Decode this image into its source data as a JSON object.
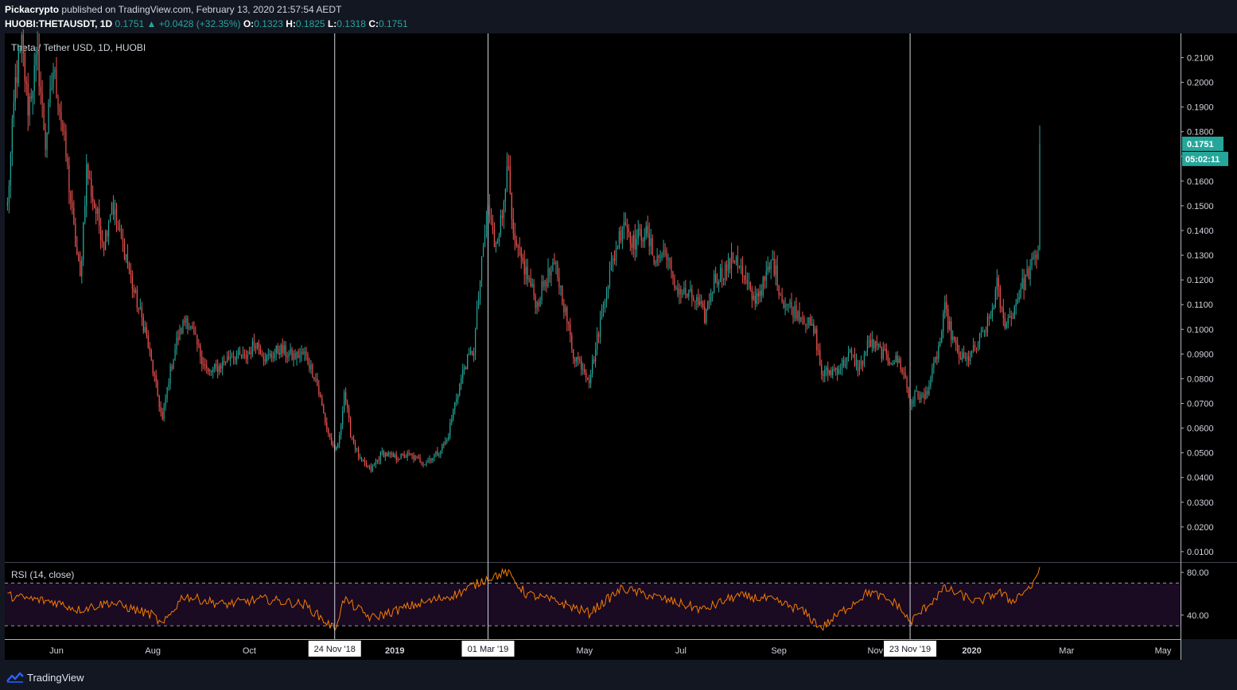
{
  "header": {
    "publisher": "Pickacrypto",
    "published_text": "published on TradingView.com, February 13, 2020 21:57:54 AEDT",
    "symbol": "HUOBI:THETAUSDT, 1D",
    "last": "0.1751",
    "change_arrow": "▲",
    "change": "+0.0428 (+32.35%)",
    "o_label": "O:",
    "o_value": "0.1323",
    "h_label": "H:",
    "h_value": "0.1825",
    "l_label": "L:",
    "l_value": "0.1318",
    "c_label": "C:",
    "c_value": "0.1751"
  },
  "footer": {
    "brand": "TradingView",
    "logo_icon": "tradingview-logo-icon"
  },
  "colors": {
    "background": "#000000",
    "frame": "#131722",
    "up": "#26a69a",
    "down": "#ef5350",
    "rsi_line": "#f57c00",
    "rsi_band": "#1a0a22",
    "text": "#d1d4dc",
    "axis_line": "#b2b5be",
    "price_badge": "#26a69a"
  },
  "chart_data": [
    {
      "type": "candlestick",
      "title": "Theta / Tether USD, 1D, HUOBI",
      "x_tick_labels": [
        "Jun",
        "Aug",
        "Oct",
        "2019",
        "May",
        "Jul",
        "Sep",
        "Nov",
        "2020",
        "Mar",
        "May"
      ],
      "y_ticks": [
        "0.2100",
        "0.2000",
        "0.1900",
        "0.1800",
        "0.1700",
        "0.1600",
        "0.1500",
        "0.1400",
        "0.1300",
        "0.1200",
        "0.1100",
        "0.1000",
        "0.0900",
        "0.0800",
        "0.0700",
        "0.0600",
        "0.0500",
        "0.0400",
        "0.0300",
        "0.0200",
        "0.0100"
      ],
      "ylim": [
        0.0058,
        0.2198
      ],
      "last_price_label": "0.1751",
      "countdown_label": "05:02:11",
      "vertical_markers": [
        {
          "label": "24 Nov '18"
        },
        {
          "label": "01 Mar '19"
        },
        {
          "label": "23 Nov '19"
        }
      ],
      "price_anchors": [
        [
          "2018-05-01",
          0.15
        ],
        [
          "2018-05-06",
          0.2
        ],
        [
          "2018-05-10",
          0.215
        ],
        [
          "2018-05-14",
          0.19
        ],
        [
          "2018-05-20",
          0.21
        ],
        [
          "2018-05-25",
          0.175
        ],
        [
          "2018-05-30",
          0.205
        ],
        [
          "2018-06-03",
          0.19
        ],
        [
          "2018-06-07",
          0.17
        ],
        [
          "2018-06-12",
          0.14
        ],
        [
          "2018-06-16",
          0.12
        ],
        [
          "2018-06-20",
          0.165
        ],
        [
          "2018-06-25",
          0.15
        ],
        [
          "2018-07-01",
          0.135
        ],
        [
          "2018-07-06",
          0.152
        ],
        [
          "2018-07-10",
          0.14
        ],
        [
          "2018-07-15",
          0.13
        ],
        [
          "2018-07-20",
          0.115
        ],
        [
          "2018-07-27",
          0.1
        ],
        [
          "2018-08-02",
          0.08
        ],
        [
          "2018-08-07",
          0.063
        ],
        [
          "2018-08-11",
          0.08
        ],
        [
          "2018-08-16",
          0.095
        ],
        [
          "2018-08-22",
          0.105
        ],
        [
          "2018-08-28",
          0.095
        ],
        [
          "2018-09-05",
          0.082
        ],
        [
          "2018-09-12",
          0.085
        ],
        [
          "2018-09-20",
          0.09
        ],
        [
          "2018-09-28",
          0.088
        ],
        [
          "2018-10-05",
          0.095
        ],
        [
          "2018-10-12",
          0.088
        ],
        [
          "2018-10-20",
          0.092
        ],
        [
          "2018-10-28",
          0.089
        ],
        [
          "2018-11-05",
          0.09
        ],
        [
          "2018-11-12",
          0.08
        ],
        [
          "2018-11-19",
          0.06
        ],
        [
          "2018-11-24",
          0.05
        ],
        [
          "2018-11-27",
          0.056
        ],
        [
          "2018-11-30",
          0.075
        ],
        [
          "2018-12-04",
          0.058
        ],
        [
          "2018-12-10",
          0.047
        ],
        [
          "2018-12-17",
          0.043
        ],
        [
          "2018-12-24",
          0.05
        ],
        [
          "2019-01-01",
          0.048
        ],
        [
          "2019-01-10",
          0.049
        ],
        [
          "2019-01-20",
          0.046
        ],
        [
          "2019-01-28",
          0.05
        ],
        [
          "2019-02-03",
          0.055
        ],
        [
          "2019-02-08",
          0.07
        ],
        [
          "2019-02-14",
          0.085
        ],
        [
          "2019-02-20",
          0.092
        ],
        [
          "2019-02-24",
          0.12
        ],
        [
          "2019-03-01",
          0.15
        ],
        [
          "2019-03-05",
          0.135
        ],
        [
          "2019-03-10",
          0.145
        ],
        [
          "2019-03-13",
          0.17
        ],
        [
          "2019-03-17",
          0.135
        ],
        [
          "2019-03-24",
          0.125
        ],
        [
          "2019-04-01",
          0.11
        ],
        [
          "2019-04-06",
          0.12
        ],
        [
          "2019-04-13",
          0.125
        ],
        [
          "2019-04-18",
          0.11
        ],
        [
          "2019-04-24",
          0.09
        ],
        [
          "2019-04-30",
          0.085
        ],
        [
          "2019-05-04",
          0.08
        ],
        [
          "2019-05-08",
          0.092
        ],
        [
          "2019-05-14",
          0.115
        ],
        [
          "2019-05-20",
          0.13
        ],
        [
          "2019-05-26",
          0.145
        ],
        [
          "2019-06-01",
          0.135
        ],
        [
          "2019-06-08",
          0.14
        ],
        [
          "2019-06-15",
          0.128
        ],
        [
          "2019-06-22",
          0.132
        ],
        [
          "2019-06-26",
          0.118
        ],
        [
          "2019-07-02",
          0.115
        ],
        [
          "2019-07-10",
          0.112
        ],
        [
          "2019-07-16",
          0.105
        ],
        [
          "2019-07-22",
          0.12
        ],
        [
          "2019-07-30",
          0.125
        ],
        [
          "2019-08-05",
          0.13
        ],
        [
          "2019-08-10",
          0.12
        ],
        [
          "2019-08-16",
          0.112
        ],
        [
          "2019-08-22",
          0.118
        ],
        [
          "2019-08-28",
          0.128
        ],
        [
          "2019-09-03",
          0.112
        ],
        [
          "2019-09-10",
          0.108
        ],
        [
          "2019-09-17",
          0.105
        ],
        [
          "2019-09-24",
          0.098
        ],
        [
          "2019-09-28",
          0.082
        ],
        [
          "2019-10-04",
          0.083
        ],
        [
          "2019-10-10",
          0.085
        ],
        [
          "2019-10-16",
          0.09
        ],
        [
          "2019-10-22",
          0.084
        ],
        [
          "2019-10-28",
          0.095
        ],
        [
          "2019-11-03",
          0.092
        ],
        [
          "2019-11-09",
          0.088
        ],
        [
          "2019-11-16",
          0.087
        ],
        [
          "2019-11-20",
          0.08
        ],
        [
          "2019-11-23",
          0.07
        ],
        [
          "2019-11-27",
          0.074
        ],
        [
          "2019-12-02",
          0.072
        ],
        [
          "2019-12-07",
          0.082
        ],
        [
          "2019-12-12",
          0.095
        ],
        [
          "2019-12-15",
          0.108
        ],
        [
          "2019-12-19",
          0.098
        ],
        [
          "2019-12-23",
          0.09
        ],
        [
          "2019-12-28",
          0.087
        ],
        [
          "2020-01-03",
          0.092
        ],
        [
          "2020-01-08",
          0.098
        ],
        [
          "2020-01-13",
          0.105
        ],
        [
          "2020-01-17",
          0.118
        ],
        [
          "2020-01-21",
          0.103
        ],
        [
          "2020-01-26",
          0.105
        ],
        [
          "2020-01-31",
          0.115
        ],
        [
          "2020-02-05",
          0.122
        ],
        [
          "2020-02-10",
          0.128
        ],
        [
          "2020-02-12",
          0.132
        ],
        [
          "2020-02-13",
          0.1751
        ]
      ]
    },
    {
      "type": "line",
      "title": "RSI (14, close)",
      "y_ticks": [
        "80.00",
        "40.00"
      ],
      "band": [
        30,
        70
      ],
      "ylim": [
        17.5,
        89
      ],
      "rsi_anchors": [
        [
          "2018-05-01",
          58
        ],
        [
          "2018-06-01",
          52
        ],
        [
          "2018-06-15",
          45
        ],
        [
          "2018-07-05",
          52
        ],
        [
          "2018-08-01",
          40
        ],
        [
          "2018-08-07",
          30
        ],
        [
          "2018-08-20",
          58
        ],
        [
          "2018-09-15",
          50
        ],
        [
          "2018-10-10",
          55
        ],
        [
          "2018-11-05",
          50
        ],
        [
          "2018-11-24",
          27
        ],
        [
          "2018-11-30",
          55
        ],
        [
          "2018-12-17",
          37
        ],
        [
          "2019-01-10",
          48
        ],
        [
          "2019-02-10",
          60
        ],
        [
          "2019-03-01",
          75
        ],
        [
          "2019-03-13",
          80
        ],
        [
          "2019-03-25",
          60
        ],
        [
          "2019-04-15",
          52
        ],
        [
          "2019-05-04",
          42
        ],
        [
          "2019-05-25",
          65
        ],
        [
          "2019-06-20",
          55
        ],
        [
          "2019-07-15",
          45
        ],
        [
          "2019-08-05",
          58
        ],
        [
          "2019-08-25",
          55
        ],
        [
          "2019-09-15",
          45
        ],
        [
          "2019-09-28",
          28
        ],
        [
          "2019-10-15",
          48
        ],
        [
          "2019-10-28",
          62
        ],
        [
          "2019-11-15",
          50
        ],
        [
          "2019-11-23",
          33
        ],
        [
          "2019-12-15",
          65
        ],
        [
          "2020-01-05",
          52
        ],
        [
          "2020-01-18",
          62
        ],
        [
          "2020-01-26",
          53
        ],
        [
          "2020-02-10",
          70
        ],
        [
          "2020-02-13",
          85
        ]
      ]
    }
  ]
}
